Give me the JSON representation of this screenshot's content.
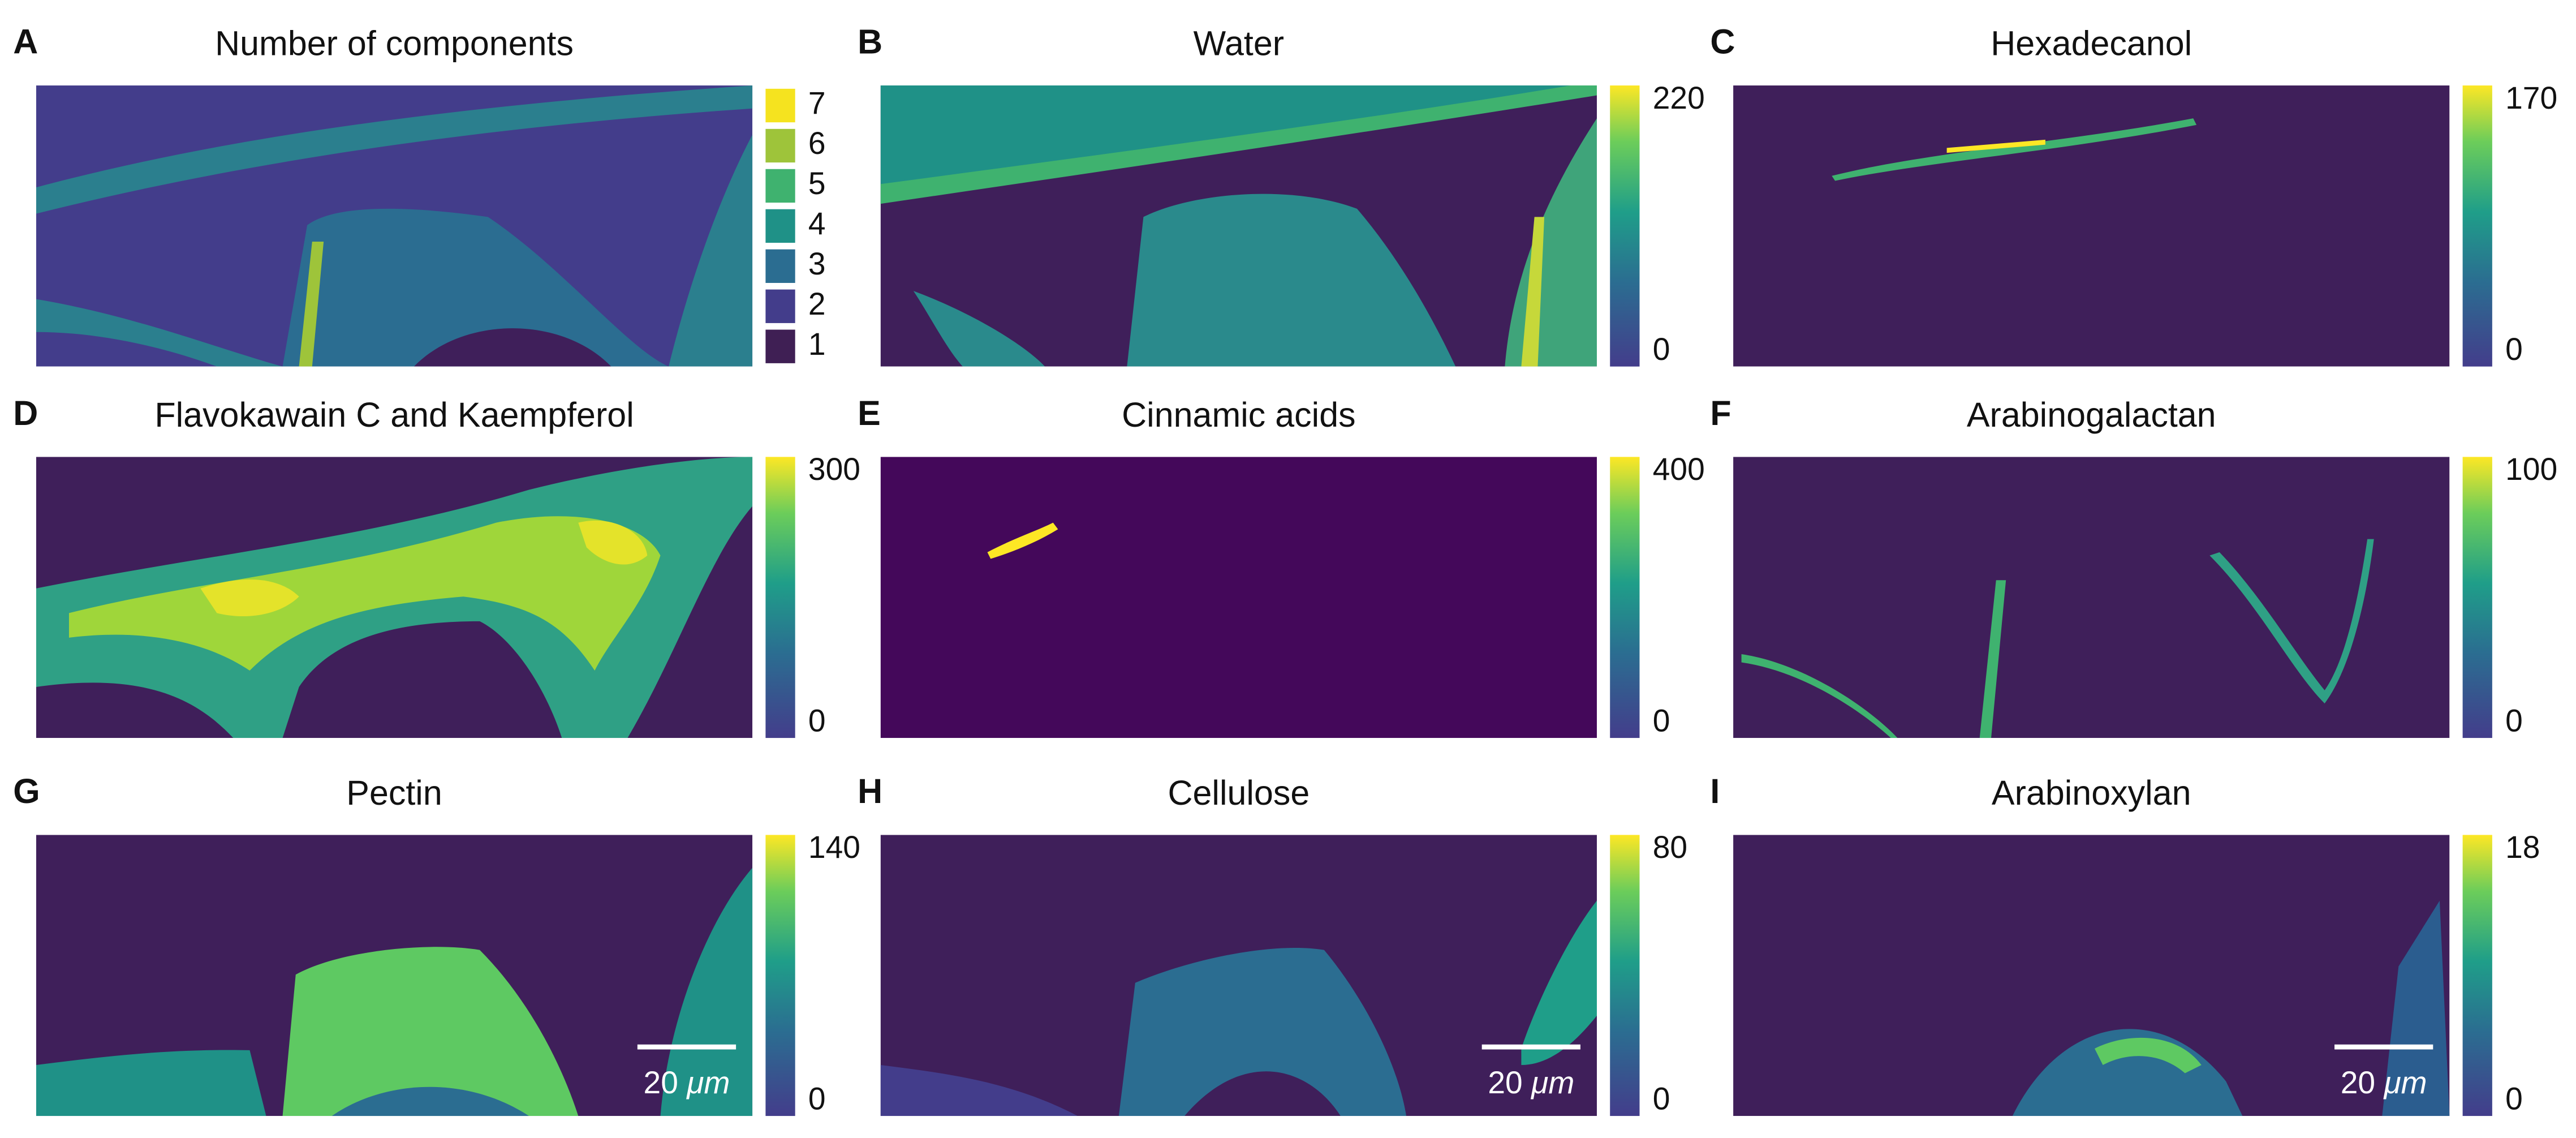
{
  "panels": [
    {
      "letter": "A",
      "title": "Number of components",
      "legend": [
        {
          "label": "7",
          "color": "#f5e31f"
        },
        {
          "label": "6",
          "color": "#9ec43a"
        },
        {
          "label": "5",
          "color": "#3fb26f"
        },
        {
          "label": "4",
          "color": "#1f9187"
        },
        {
          "label": "3",
          "color": "#2b6d91"
        },
        {
          "label": "2",
          "color": "#433d8b"
        },
        {
          "label": "1",
          "color": "#3f1f54"
        }
      ]
    },
    {
      "letter": "B",
      "title": "Water",
      "colorbar_ticks": [
        "220",
        "0"
      ]
    },
    {
      "letter": "C",
      "title": "Hexadecanol",
      "colorbar_ticks": [
        "170",
        "0"
      ]
    },
    {
      "letter": "D",
      "title": "Flavokawain C and Kaempferol",
      "colorbar_ticks": [
        "300",
        "0"
      ]
    },
    {
      "letter": "E",
      "title": "Cinnamic acids",
      "colorbar_ticks": [
        "400",
        "0"
      ]
    },
    {
      "letter": "F",
      "title": "Arabinogalactan",
      "colorbar_ticks": [
        "100",
        "0"
      ]
    },
    {
      "letter": "G",
      "title": "Pectin",
      "colorbar_ticks": [
        "140",
        "0"
      ],
      "scale_bar": {
        "value": "20",
        "unit": "μm"
      }
    },
    {
      "letter": "H",
      "title": "Cellulose",
      "colorbar_ticks": [
        "80",
        "0"
      ],
      "scale_bar": {
        "value": "20",
        "unit": "μm"
      }
    },
    {
      "letter": "I",
      "title": "Arabinoxylan",
      "colorbar_ticks": [
        "18",
        "0"
      ],
      "scale_bar": {
        "value": "20",
        "unit": "μm"
      }
    }
  ]
}
